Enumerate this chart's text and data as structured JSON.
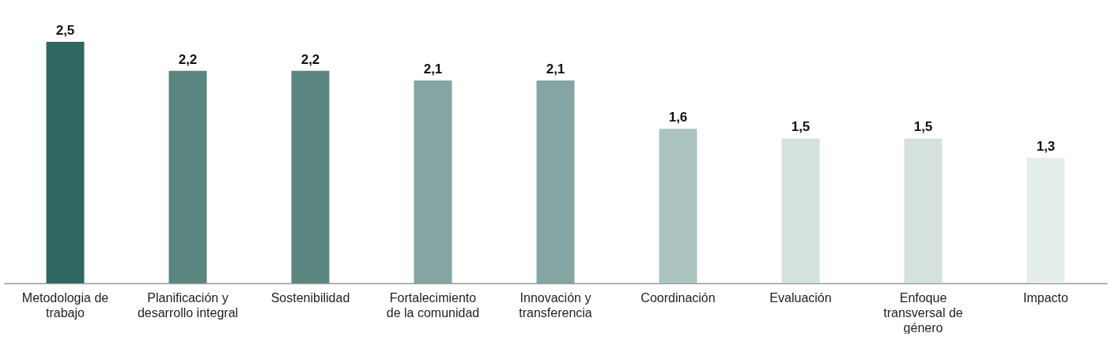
{
  "chart_data": {
    "type": "bar",
    "categories": [
      "Metodologia de trabajo",
      "Planificación y desarrollo integral",
      "Sostenibilidad",
      "Fortalecimiento de la comunidad",
      "Innovación y transferencia",
      "Coordinación",
      "Evaluación",
      "Enfoque transversal de género",
      "Impacto"
    ],
    "values": [
      2.5,
      2.2,
      2.2,
      2.1,
      2.1,
      1.6,
      1.5,
      1.5,
      1.3
    ],
    "colors": [
      "#2e6860",
      "#5a867f",
      "#5a867f",
      "#84a5a1",
      "#84a5a1",
      "#abc3bf",
      "#d5e1de",
      "#d5e1de",
      "#e6eeec"
    ],
    "value_labels": [
      "2,5",
      "2,2",
      "2,2",
      "2,1",
      "2,1",
      "1,6",
      "1,5",
      "1,5",
      "1,3"
    ],
    "grid": false
  }
}
